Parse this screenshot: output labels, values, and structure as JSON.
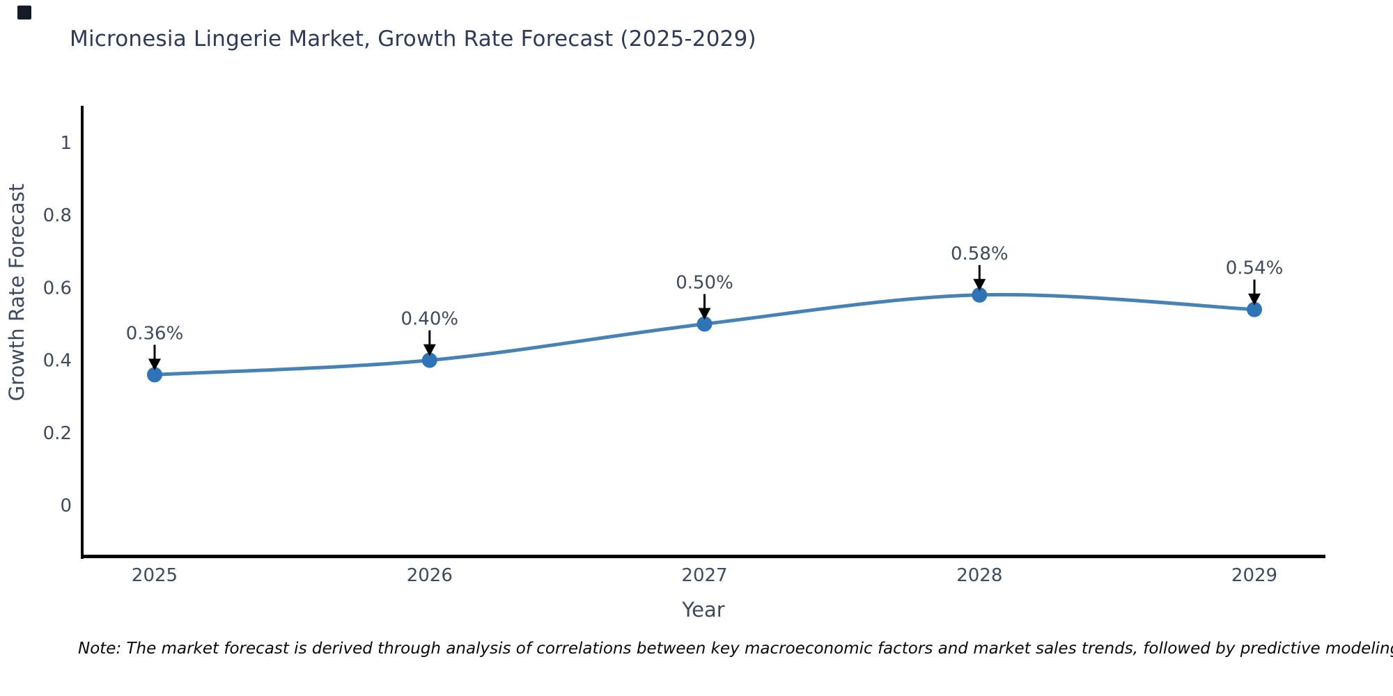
{
  "header": {
    "title": "Micronesia Lingerie Market, Growth Rate Forecast (2025-2029)"
  },
  "icons": {
    "cursor_square": "filled-square"
  },
  "chart_data": {
    "type": "line",
    "title": "Micronesia Lingerie Market, Growth Rate Forecast (2025-2029)",
    "xlabel": "Year",
    "ylabel": "Growth Rate Forecast",
    "x": [
      2025,
      2026,
      2027,
      2028,
      2029
    ],
    "x_labels": [
      "2025",
      "2026",
      "2027",
      "2028",
      "2029"
    ],
    "series": [
      {
        "name": "Growth Rate Forecast",
        "values": [
          0.36,
          0.4,
          0.5,
          0.58,
          0.54
        ]
      }
    ],
    "point_labels": [
      "0.36%",
      "0.40%",
      "0.50%",
      "0.58%",
      "0.54%"
    ],
    "yticks": [
      0,
      0.2,
      0.4,
      0.6,
      0.8,
      1
    ],
    "ytick_labels": [
      "0",
      "0.2",
      "0.4",
      "0.6",
      "0.8",
      "1"
    ],
    "ylim": [
      -0.15,
      1.1
    ],
    "grid": false,
    "legend": "none",
    "smooth": true,
    "line_color": "#4682b4",
    "marker_color": "#2e74b6",
    "spine_color": "#000000",
    "tick_color": "#3e4a5f",
    "annotation_text_color": "#3e4a5f",
    "annotation_arrow_color": "#000000"
  },
  "note": {
    "text": "Note: The market forecast is derived through analysis of correlations between key macroeconomic factors and market sales trends, followed by predictive modeling to project future sales"
  }
}
